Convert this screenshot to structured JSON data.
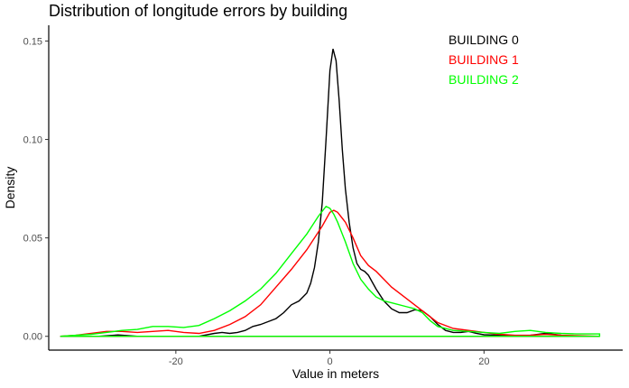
{
  "chart_data": {
    "type": "line",
    "title": "Distribution of longitude errors by building",
    "xlabel": "Value in meters",
    "ylabel": "Density",
    "xlim": [
      -36.5,
      38
    ],
    "ylim": [
      -0.007,
      0.158
    ],
    "x_ticks": [
      -20,
      0,
      20
    ],
    "x_tick_labels": [
      "-20",
      "0",
      "20"
    ],
    "y_ticks": [
      0.0,
      0.05,
      0.1,
      0.15
    ],
    "y_tick_labels": [
      "0.00",
      "0.05",
      "0.10",
      "0.15"
    ],
    "grid": false,
    "legend_position": "top-right",
    "series": [
      {
        "name": "BUILDING 0",
        "color": "#000000",
        "points": [
          [
            -35,
            0
          ],
          [
            -30,
            0.0
          ],
          [
            -27.5,
            0.0007
          ],
          [
            -25,
            0
          ],
          [
            -20,
            0
          ],
          [
            -17,
            0
          ],
          [
            -15,
            0.0015
          ],
          [
            -14,
            0.002
          ],
          [
            -13,
            0.0015
          ],
          [
            -12,
            0.002
          ],
          [
            -11,
            0.003
          ],
          [
            -10,
            0.005
          ],
          [
            -9,
            0.006
          ],
          [
            -8,
            0.0075
          ],
          [
            -7,
            0.009
          ],
          [
            -6,
            0.012
          ],
          [
            -5,
            0.016
          ],
          [
            -4,
            0.018
          ],
          [
            -3,
            0.022
          ],
          [
            -2.5,
            0.027
          ],
          [
            -2,
            0.035
          ],
          [
            -1.5,
            0.048
          ],
          [
            -1,
            0.068
          ],
          [
            -0.5,
            0.1
          ],
          [
            0,
            0.135
          ],
          [
            0.4,
            0.146
          ],
          [
            0.8,
            0.14
          ],
          [
            1.2,
            0.12
          ],
          [
            1.6,
            0.095
          ],
          [
            2,
            0.075
          ],
          [
            2.5,
            0.058
          ],
          [
            3,
            0.045
          ],
          [
            3.5,
            0.037
          ],
          [
            4,
            0.034
          ],
          [
            4.5,
            0.033
          ],
          [
            5,
            0.031
          ],
          [
            6,
            0.024
          ],
          [
            7,
            0.018
          ],
          [
            8,
            0.014
          ],
          [
            9,
            0.012
          ],
          [
            10,
            0.012
          ],
          [
            11,
            0.0135
          ],
          [
            12,
            0.013
          ],
          [
            13,
            0.01
          ],
          [
            14,
            0.006
          ],
          [
            15,
            0.003
          ],
          [
            16,
            0.002
          ],
          [
            17,
            0.002
          ],
          [
            18,
            0.0025
          ],
          [
            19,
            0.0015
          ],
          [
            20,
            0.0008
          ],
          [
            22,
            0.0005
          ],
          [
            24,
            0
          ],
          [
            26,
            0.0005
          ],
          [
            28,
            0.0015
          ],
          [
            29,
            0.001
          ],
          [
            31,
            0
          ],
          [
            35,
            0
          ]
        ]
      },
      {
        "name": "BUILDING 1",
        "color": "#ff0000",
        "points": [
          [
            -35,
            0
          ],
          [
            -33,
            0.0005
          ],
          [
            -31,
            0.0015
          ],
          [
            -29,
            0.0025
          ],
          [
            -27,
            0.0025
          ],
          [
            -25,
            0.002
          ],
          [
            -23,
            0.0025
          ],
          [
            -21,
            0.003
          ],
          [
            -19,
            0.002
          ],
          [
            -17,
            0.0015
          ],
          [
            -15,
            0.003
          ],
          [
            -13,
            0.006
          ],
          [
            -11,
            0.01
          ],
          [
            -9,
            0.016
          ],
          [
            -7,
            0.025
          ],
          [
            -5,
            0.034
          ],
          [
            -3,
            0.044
          ],
          [
            -1,
            0.056
          ],
          [
            0,
            0.063
          ],
          [
            0.5,
            0.064
          ],
          [
            1,
            0.063
          ],
          [
            2,
            0.058
          ],
          [
            3,
            0.05
          ],
          [
            4,
            0.041
          ],
          [
            5,
            0.036
          ],
          [
            6,
            0.033
          ],
          [
            7,
            0.029
          ],
          [
            8,
            0.025
          ],
          [
            10,
            0.019
          ],
          [
            12,
            0.013
          ],
          [
            14,
            0.007
          ],
          [
            16,
            0.004
          ],
          [
            18,
            0.003
          ],
          [
            20,
            0.002
          ],
          [
            22,
            0.001
          ],
          [
            24,
            0.0005
          ],
          [
            26,
            0.0005
          ],
          [
            28,
            0.001
          ],
          [
            30,
            0.0005
          ],
          [
            35,
            0
          ]
        ]
      },
      {
        "name": "BUILDING 2",
        "color": "#00ff00",
        "points": [
          [
            -35,
            0
          ],
          [
            -33,
            0.0005
          ],
          [
            -31,
            0.001
          ],
          [
            -29,
            0.002
          ],
          [
            -27,
            0.003
          ],
          [
            -25,
            0.0035
          ],
          [
            -23,
            0.005
          ],
          [
            -21,
            0.005
          ],
          [
            -19,
            0.0045
          ],
          [
            -17,
            0.0055
          ],
          [
            -15,
            0.009
          ],
          [
            -13,
            0.013
          ],
          [
            -11,
            0.018
          ],
          [
            -9,
            0.024
          ],
          [
            -7,
            0.032
          ],
          [
            -5,
            0.042
          ],
          [
            -3,
            0.052
          ],
          [
            -1.5,
            0.061
          ],
          [
            -0.5,
            0.066
          ],
          [
            0,
            0.065
          ],
          [
            0.5,
            0.062
          ],
          [
            1,
            0.058
          ],
          [
            2,
            0.048
          ],
          [
            3,
            0.037
          ],
          [
            4,
            0.029
          ],
          [
            5,
            0.024
          ],
          [
            6,
            0.02
          ],
          [
            7,
            0.018
          ],
          [
            8,
            0.017
          ],
          [
            10,
            0.015
          ],
          [
            11,
            0.014
          ],
          [
            12,
            0.012
          ],
          [
            13,
            0.008
          ],
          [
            14,
            0.005
          ],
          [
            16,
            0.003
          ],
          [
            18,
            0.0025
          ],
          [
            20,
            0.002
          ],
          [
            22,
            0.0015
          ],
          [
            24,
            0.0025
          ],
          [
            26,
            0.003
          ],
          [
            28,
            0.002
          ],
          [
            30,
            0.0015
          ],
          [
            32,
            0.0012
          ],
          [
            35,
            0.0012
          ]
        ]
      }
    ]
  }
}
